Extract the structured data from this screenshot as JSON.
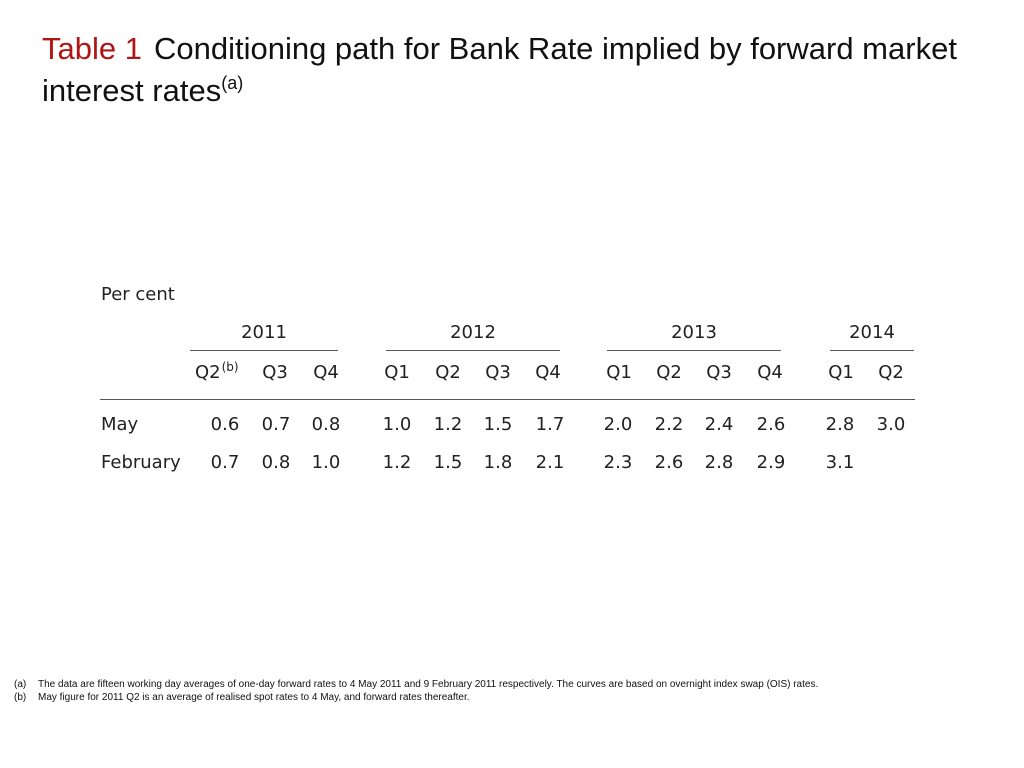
{
  "title": {
    "label": "Table 1",
    "text": "Conditioning path for Bank Rate implied by forward market interest rates",
    "note_ref": "(a)"
  },
  "table": {
    "unit": "Per cent",
    "years": [
      "2011",
      "2012",
      "2013",
      "2014"
    ],
    "quarters": [
      "Q2",
      "Q3",
      "Q4",
      "Q1",
      "Q2",
      "Q3",
      "Q4",
      "Q1",
      "Q2",
      "Q3",
      "Q4",
      "Q1",
      "Q2"
    ],
    "first_quarter_note": "(b)",
    "rows": [
      {
        "label": "May",
        "values": [
          "0.6",
          "0.7",
          "0.8",
          "1.0",
          "1.2",
          "1.5",
          "1.7",
          "2.0",
          "2.2",
          "2.4",
          "2.6",
          "2.8",
          "3.0"
        ]
      },
      {
        "label": "February",
        "values": [
          "0.7",
          "0.8",
          "1.0",
          "1.2",
          "1.5",
          "1.8",
          "2.1",
          "2.3",
          "2.6",
          "2.8",
          "2.9",
          "3.1",
          ""
        ]
      }
    ]
  },
  "notes": [
    {
      "marker": "(a)",
      "text": "The data are fifteen working day averages of one-day forward rates to 4 May 2011 and 9 February 2011 respectively.  The curves are based on overnight index swap (OIS) rates."
    },
    {
      "marker": "(b)",
      "text": "May figure for 2011 Q2 is an average of realised spot rates to 4 May, and forward rates thereafter."
    }
  ]
}
